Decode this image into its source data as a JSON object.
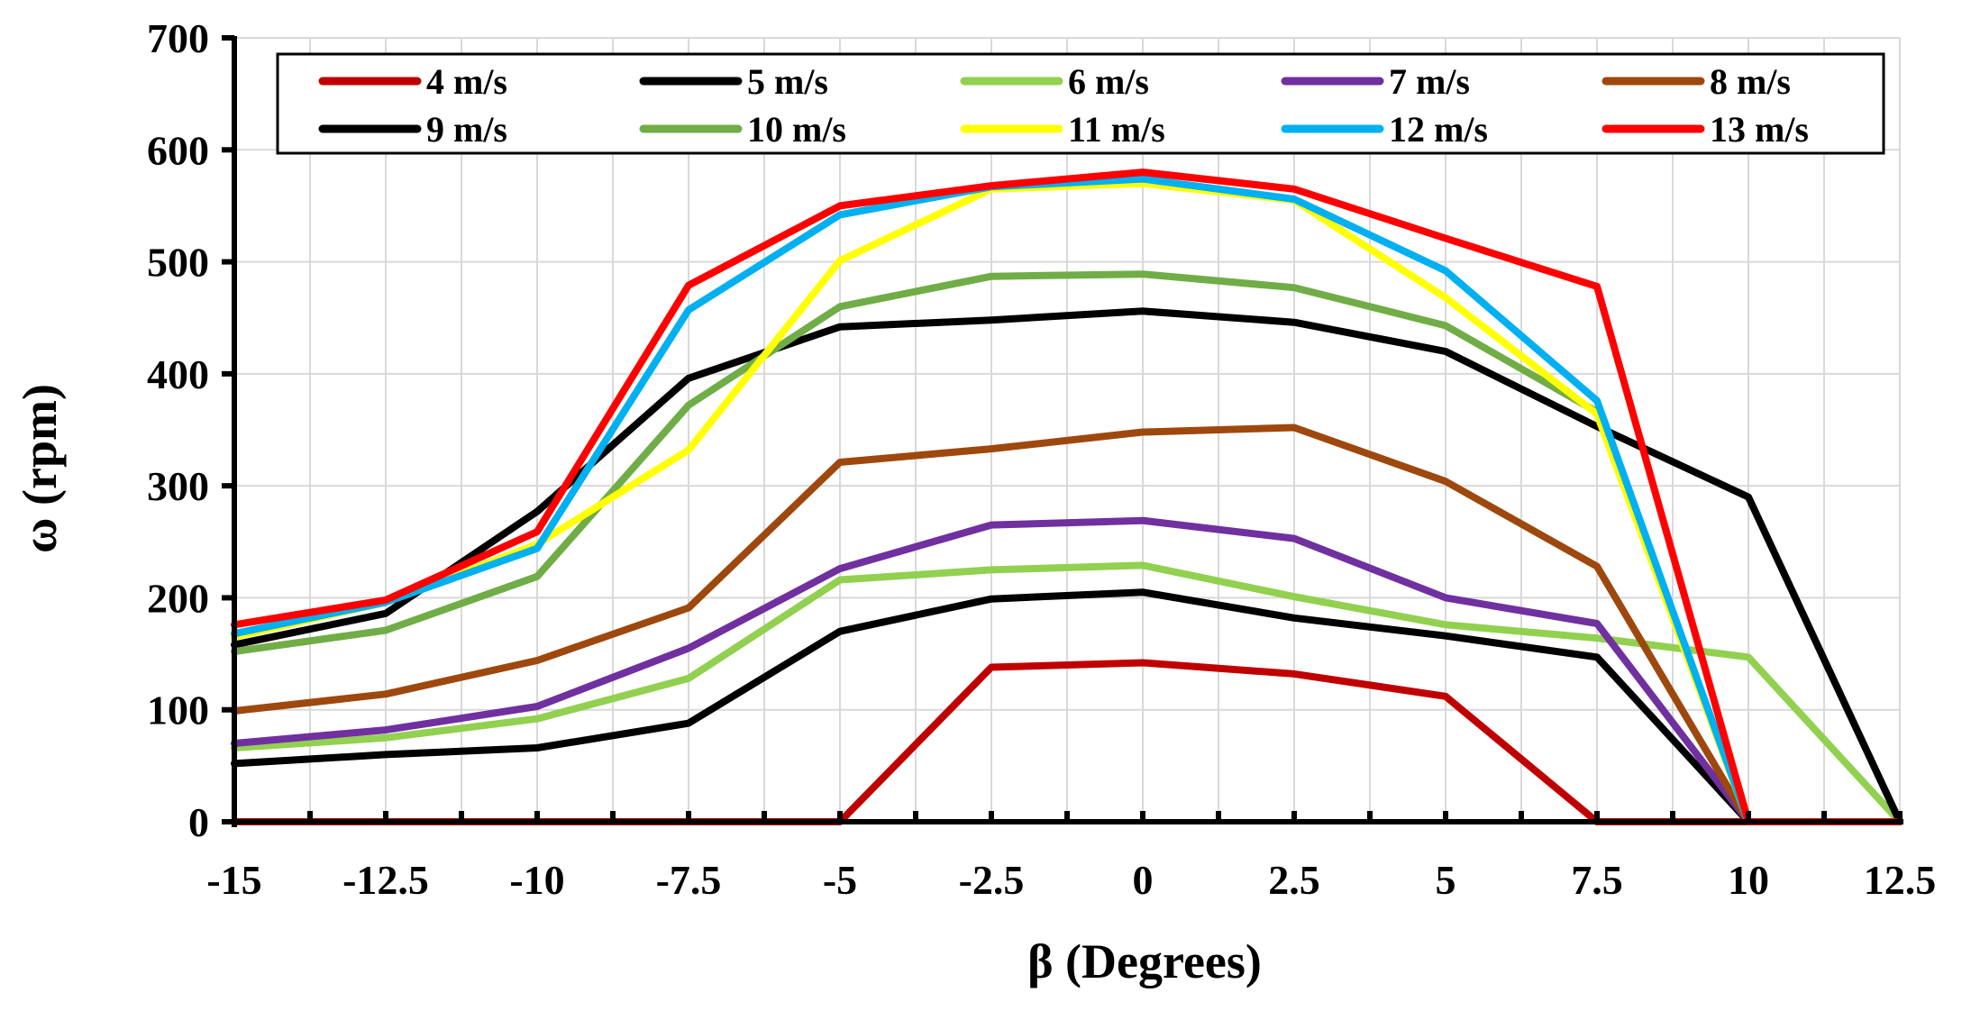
{
  "chart_data": {
    "type": "line",
    "title": "",
    "xlabel": "β (Degrees)",
    "ylabel": "ω (rpm)",
    "xlim": [
      -15,
      12.5
    ],
    "ylim": [
      0,
      700
    ],
    "grid": true,
    "legend_position": "top",
    "x": [
      -15,
      -12.5,
      -10,
      -7.5,
      -5,
      -2.5,
      0,
      2.5,
      5,
      7.5,
      10,
      12.5
    ],
    "x_tick_labels": [
      "-15",
      "-12.5",
      "-10",
      "-7.5",
      "-5",
      "-2.5",
      "0",
      "2.5",
      "5",
      "7.5",
      "10",
      "12.5"
    ],
    "y_ticks": [
      0,
      100,
      200,
      300,
      400,
      500,
      600,
      700
    ],
    "y_tick_labels": [
      "0",
      "100",
      "200",
      "300",
      "400",
      "500",
      "600",
      "700"
    ],
    "series": [
      {
        "name": "4 m/s",
        "color": "#C00000",
        "values": [
          0,
          0,
          0,
          0,
          0,
          138,
          142,
          132,
          112,
          0,
          0,
          0
        ]
      },
      {
        "name": "5 m/s",
        "color": "#000000",
        "values": [
          52,
          60,
          66,
          88,
          170,
          199,
          205,
          182,
          166,
          147,
          0,
          0
        ]
      },
      {
        "name": "6 m/s",
        "color": "#92D050",
        "values": [
          66,
          75,
          92,
          128,
          216,
          225,
          229,
          201,
          176,
          164,
          147,
          0
        ]
      },
      {
        "name": "7 m/s",
        "color": "#7030A0",
        "values": [
          70,
          82,
          103,
          155,
          226,
          265,
          269,
          253,
          200,
          177,
          0,
          0
        ]
      },
      {
        "name": "8 m/s",
        "color": "#9E480E",
        "values": [
          99,
          114,
          144,
          191,
          321,
          333,
          348,
          352,
          304,
          228,
          0,
          0
        ]
      },
      {
        "name": "9 m/s",
        "color": "#000000",
        "values": [
          158,
          186,
          277,
          396,
          442,
          448,
          456,
          446,
          420,
          353,
          290,
          0
        ]
      },
      {
        "name": "10 m/s",
        "color": "#70AD47",
        "values": [
          152,
          171,
          219,
          372,
          460,
          487,
          489,
          477,
          443,
          366,
          0,
          0
        ]
      },
      {
        "name": "11 m/s",
        "color": "#FFFF00",
        "values": [
          165,
          196,
          248,
          332,
          501,
          565,
          570,
          555,
          468,
          364,
          0,
          0
        ]
      },
      {
        "name": "12 m/s",
        "color": "#00B0F0",
        "values": [
          168,
          196,
          244,
          457,
          542,
          567,
          574,
          556,
          492,
          376,
          0,
          0
        ]
      },
      {
        "name": "13 m/s",
        "color": "#FF0000",
        "values": [
          176,
          198,
          259,
          479,
          550,
          568,
          580,
          565,
          521,
          478,
          0,
          0
        ]
      }
    ]
  }
}
